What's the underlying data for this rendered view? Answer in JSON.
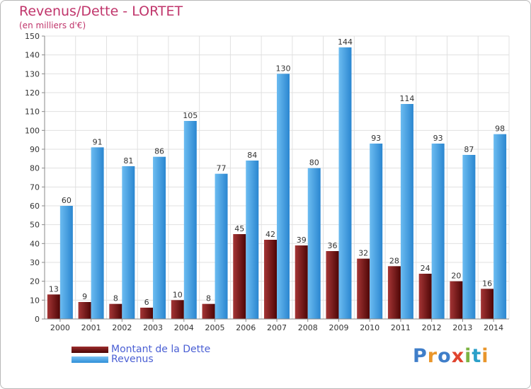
{
  "chart_data": {
    "type": "bar",
    "title": "Revenus/Dette - LORTET",
    "subtitle": "(en milliers d'€)",
    "categories": [
      "2000",
      "2001",
      "2002",
      "2003",
      "2004",
      "2005",
      "2006",
      "2007",
      "2008",
      "2009",
      "2010",
      "2011",
      "2012",
      "2013",
      "2014"
    ],
    "series": [
      {
        "name": "Montant de la Dette",
        "color": "#7a1414",
        "values": [
          13,
          9,
          8,
          6,
          10,
          8,
          45,
          42,
          39,
          36,
          32,
          28,
          24,
          20,
          16
        ]
      },
      {
        "name": "Revenus",
        "color": "#4aa3e6",
        "values": [
          60,
          91,
          81,
          86,
          105,
          77,
          84,
          130,
          80,
          144,
          93,
          114,
          93,
          87,
          98
        ]
      }
    ],
    "ylim": [
      0,
      150
    ],
    "yticks": [
      0,
      10,
      20,
      30,
      40,
      50,
      60,
      70,
      80,
      90,
      100,
      110,
      120,
      130,
      140,
      150
    ],
    "grid": true,
    "legend": "bottom-left"
  },
  "brand": {
    "logo_letters": [
      "P",
      "r",
      "o",
      "x",
      "i",
      "t",
      "i"
    ]
  }
}
